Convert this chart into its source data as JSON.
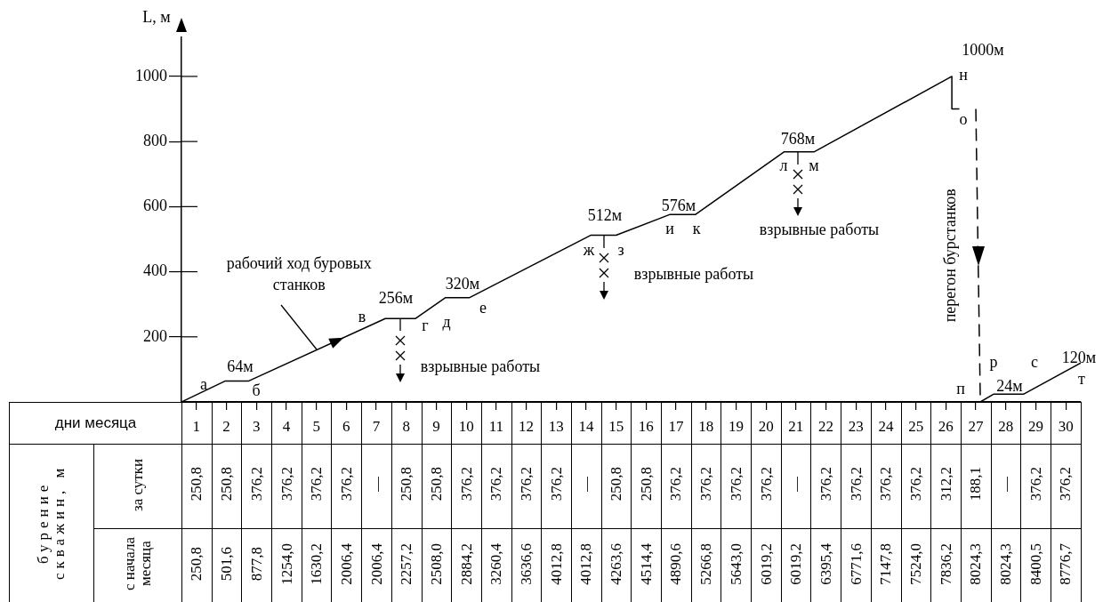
{
  "chart_data": [
    {
      "type": "line",
      "ylabel": "L, м",
      "xlim": [
        0,
        30
      ],
      "ylim": [
        0,
        1120
      ],
      "yticks": [
        200,
        400,
        600,
        800,
        1000
      ],
      "xticks": [
        {
          "value": 0.5,
          "label": "1"
        },
        {
          "value": 1.5,
          "label": "2"
        },
        {
          "value": 2.5,
          "label": "3"
        },
        {
          "value": 3.5,
          "label": "4"
        },
        {
          "value": 4.5,
          "label": "5"
        },
        {
          "value": 5.5,
          "label": "6"
        },
        {
          "value": 6.5,
          "label": "7"
        },
        {
          "value": 7.5,
          "label": "8"
        },
        {
          "value": 8.5,
          "label": "9"
        },
        {
          "value": 9.5,
          "label": "10"
        },
        {
          "value": 10.5,
          "label": "11"
        },
        {
          "value": 11.5,
          "label": "12"
        },
        {
          "value": 12.5,
          "label": "13"
        },
        {
          "value": 13.5,
          "label": "14"
        },
        {
          "value": 14.5,
          "label": "15"
        },
        {
          "value": 15.5,
          "label": "16"
        },
        {
          "value": 16.5,
          "label": "17"
        },
        {
          "value": 17.5,
          "label": "18"
        },
        {
          "value": 18.5,
          "label": "19"
        },
        {
          "value": 19.5,
          "label": "20"
        },
        {
          "value": 20.5,
          "label": "21"
        },
        {
          "value": 21.5,
          "label": "22"
        },
        {
          "value": 22.5,
          "label": "23"
        },
        {
          "value": 23.5,
          "label": "24"
        },
        {
          "value": 24.5,
          "label": "25"
        },
        {
          "value": 25.5,
          "label": "26"
        },
        {
          "value": 26.5,
          "label": "27"
        },
        {
          "value": 27.5,
          "label": "28"
        },
        {
          "value": 28.5,
          "label": "29"
        },
        {
          "value": 29.5,
          "label": "30"
        }
      ],
      "marker": "none",
      "series": [
        {
          "type": "line",
          "name": "рабочий ход буровых станков",
          "color": "#000000",
          "line_style": "solid",
          "x": [
            0,
            1.45,
            2.23,
            6.8,
            7.8,
            8.8,
            9.6,
            13.65,
            14.5,
            16.3,
            17.15,
            20.1,
            21.1,
            25.7,
            25.7,
            25.95
          ],
          "values": [
            0,
            64,
            64,
            256,
            256,
            320,
            320,
            512,
            512,
            576,
            576,
            768,
            768,
            1000,
            900,
            900
          ]
        },
        {
          "type": "line",
          "name": "перегон бурстанков",
          "color": "#000000",
          "line_style": "dashed",
          "x": [
            26.5,
            26.65
          ],
          "values": [
            900,
            0
          ]
        },
        {
          "type": "line",
          "color": "#000000",
          "line_style": "solid",
          "x": [
            26.65,
            27.1,
            28.1,
            30
          ],
          "values": [
            0,
            24,
            24,
            120
          ]
        }
      ],
      "annotations": [
        "а",
        "64м",
        "б",
        "в",
        "256м",
        "г",
        "д",
        "320м",
        "е",
        "взрывные работы",
        "512м",
        "ж",
        "з",
        "взрывные работы",
        "576м",
        "и",
        "к",
        "768м",
        "л",
        "м",
        "взрывные работы",
        "1000м",
        "н",
        "о",
        "п",
        "р",
        "с",
        "24м",
        "120м",
        "т"
      ]
    },
    {
      "type": "heatmap",
      "xlabel": "дни месяца",
      "ylabel": "бурение скважин, м",
      "categories": [
        "1",
        "2",
        "3",
        "4",
        "5",
        "6",
        "7",
        "8",
        "9",
        "10",
        "11",
        "12",
        "13",
        "14",
        "15",
        "16",
        "17",
        "18",
        "19",
        "20",
        "21",
        "22",
        "23",
        "24",
        "25",
        "26",
        "27",
        "28",
        "29",
        "30"
      ],
      "y_categories": [
        "за сутки",
        "с начала месяца"
      ],
      "tick_labels": "y",
      "cells": [
        [
          250.8,
          250.8,
          376.2,
          376.2,
          376.2,
          376.2,
          null,
          250.8,
          250.8,
          376.2,
          376.2,
          376.2,
          376.2,
          null,
          250.8,
          250.8,
          376.2,
          376.2,
          376.2,
          376.2,
          null,
          376.2,
          376.2,
          376.2,
          376.2,
          312.2,
          188.1,
          null,
          376.2,
          376.2
        ],
        [
          250.8,
          501.6,
          877.8,
          1254.0,
          1630.2,
          2006.4,
          2006.4,
          2257.2,
          2508.0,
          2884.2,
          3260.4,
          3636.6,
          4012.8,
          4012.8,
          4263.6,
          4514.4,
          4890.6,
          5266.8,
          5643.0,
          6019.2,
          6019.2,
          6395.4,
          6771.6,
          7147.8,
          7524.0,
          7836.2,
          8024.3,
          8024.3,
          8400.5,
          8776.7
        ]
      ],
      "cell_labels": [
        [
          "250,8",
          "250,8",
          "376,2",
          "376,2",
          "376,2",
          "376,2",
          "—",
          "250,8",
          "250,8",
          "376,2",
          "376,2",
          "376,2",
          "376,2",
          "—",
          "250,8",
          "250,8",
          "376,2",
          "376,2",
          "376,2",
          "376,2",
          "—",
          "376,2",
          "376,2",
          "376,2",
          "376,2",
          "312,2",
          "188,1",
          "—",
          "376,2",
          "376,2"
        ],
        [
          "250,8",
          "501,6",
          "877,8",
          "1254,0",
          "1630,2",
          "2006,4",
          "2006,4",
          "2257,2",
          "2508,0",
          "2884,2",
          "3260,4",
          "3636,6",
          "4012,8",
          "4012,8",
          "4263,6",
          "4514,4",
          "4890,6",
          "5266,8",
          "5643,0",
          "6019,2",
          "6019,2",
          "6395,4",
          "6771,6",
          "7147,8",
          "7524,0",
          "7836,2",
          "8024,3",
          "8024,3",
          "8400,5",
          "8776,7"
        ]
      ]
    }
  ]
}
